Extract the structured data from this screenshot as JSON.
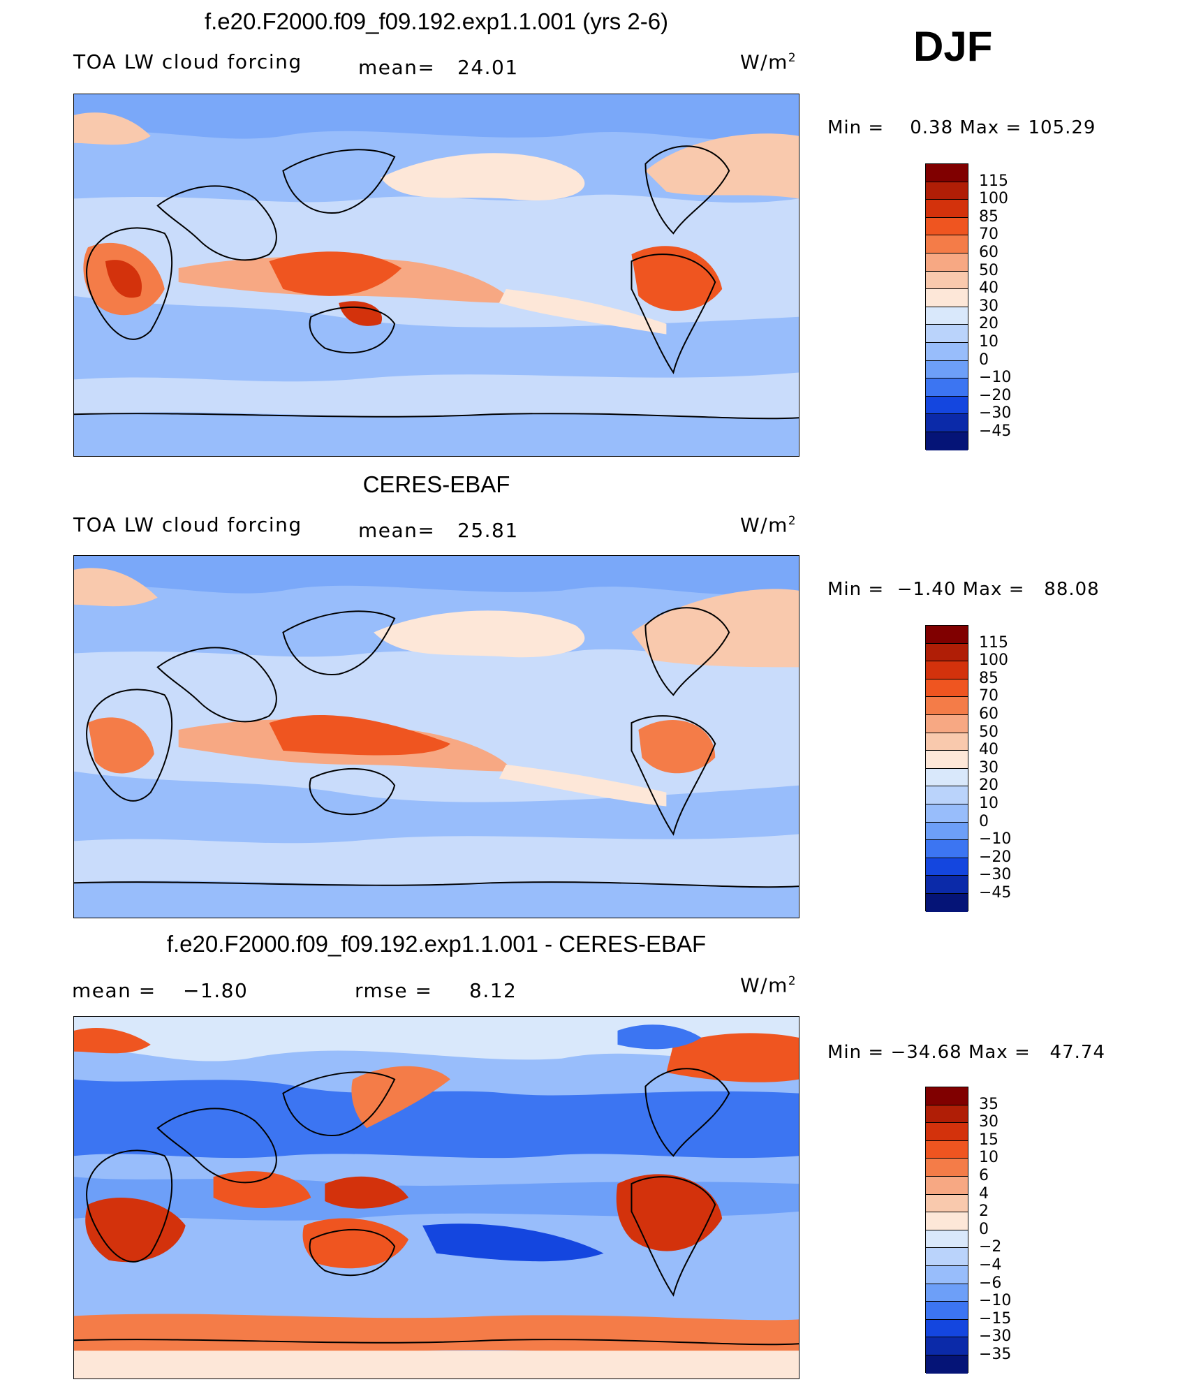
{
  "season": "DJF",
  "units": "W/m",
  "units_exp": "2",
  "panels": [
    {
      "title": "f.e20.F2000.f09_f09.192.exp1.1.001 (yrs 2-6)",
      "subtitle": "TOA LW cloud forcing",
      "left_label": "mean=",
      "left_value": "24.01",
      "min_label": "Min  =",
      "min_value": "0.38",
      "max_label": "Max  =",
      "max_value": "105.29",
      "colorbar": {
        "labels": [
          "115",
          "100",
          "85",
          "70",
          "60",
          "50",
          "40",
          "30",
          "20",
          "10",
          "0",
          "−10",
          "−20",
          "−30",
          "−45"
        ],
        "colors": [
          "#800000",
          "#b01e06",
          "#d3320c",
          "#ef5520",
          "#f47c48",
          "#f7a883",
          "#f9c9ad",
          "#fde7d8",
          "#d9e8fb",
          "#bad3fb",
          "#98bdfb",
          "#6d9ff8",
          "#3c75f2",
          "#1446df",
          "#0b2aa9",
          "#051477"
        ]
      }
    },
    {
      "title": "CERES-EBAF",
      "subtitle": "TOA LW cloud forcing",
      "left_label": "mean=",
      "left_value": "25.81",
      "min_label": "Min  =",
      "min_value": "−1.40",
      "max_label": "Max  =",
      "max_value": "88.08",
      "colorbar": {
        "labels": [
          "115",
          "100",
          "85",
          "70",
          "60",
          "50",
          "40",
          "30",
          "20",
          "10",
          "0",
          "−10",
          "−20",
          "−30",
          "−45"
        ],
        "colors": [
          "#800000",
          "#b01e06",
          "#d3320c",
          "#ef5520",
          "#f47c48",
          "#f7a883",
          "#f9c9ad",
          "#fde7d8",
          "#d9e8fb",
          "#bad3fb",
          "#98bdfb",
          "#6d9ff8",
          "#3c75f2",
          "#1446df",
          "#0b2aa9",
          "#051477"
        ]
      }
    },
    {
      "title": "f.e20.F2000.f09_f09.192.exp1.1.001 - CERES-EBAF",
      "subtitle": "",
      "left_label": "mean  =",
      "left_value": "−1.80",
      "right_label": "rmse  =",
      "right_value": "8.12",
      "min_label": "Min  =",
      "min_value": "−34.68",
      "max_label": "Max  =",
      "max_value": "47.74",
      "colorbar": {
        "labels": [
          "35",
          "30",
          "15",
          "10",
          "6",
          "4",
          "2",
          "0",
          "−2",
          "−4",
          "−6",
          "−10",
          "−15",
          "−30",
          "−35"
        ],
        "colors": [
          "#800000",
          "#b01e06",
          "#d3320c",
          "#ef5520",
          "#f47c48",
          "#f7a883",
          "#f9c9ad",
          "#fde7d8",
          "#d9e8fb",
          "#bad3fb",
          "#98bdfb",
          "#6d9ff8",
          "#3c75f2",
          "#1446df",
          "#0b2aa9",
          "#051477"
        ]
      }
    }
  ]
}
